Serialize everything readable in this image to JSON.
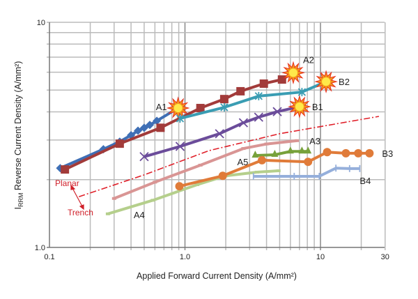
{
  "chart_data": {
    "type": "line",
    "xscale": "log",
    "yscale": "log",
    "xlim": [
      0.1,
      30
    ],
    "ylim": [
      1.0,
      10
    ],
    "xlabel": "Applied Forward Current Density (A/mm²)",
    "ylabel_main": "I",
    "ylabel_sub": "RRM",
    "ylabel_rest": " Reverse Current Density (A/mm²)",
    "xticks": [
      {
        "v": 0.1,
        "label": "0.1"
      },
      {
        "v": 1,
        "label": "1.0"
      },
      {
        "v": 10,
        "label": "10"
      },
      {
        "v": 30,
        "label": "30"
      }
    ],
    "yticks": [
      {
        "v": 1,
        "label": "1.0"
      },
      {
        "v": 10,
        "label": "10"
      }
    ],
    "grid": true,
    "series": [
      {
        "name": "A1",
        "color": "#3f6fb5",
        "marker": "diamond",
        "x": [
          0.12,
          0.25,
          0.33,
          0.4,
          0.45,
          0.5,
          0.55,
          0.62,
          0.89
        ],
        "y": [
          2.25,
          2.73,
          2.95,
          3.15,
          3.3,
          3.4,
          3.5,
          3.65,
          4.16
        ],
        "end": "star",
        "label_pos": "left"
      },
      {
        "name": "A2",
        "color": "#a23b3a",
        "marker": "square",
        "x": [
          0.13,
          0.33,
          0.66,
          1.3,
          1.95,
          2.57,
          3.82,
          5.2,
          6.3
        ],
        "y": [
          2.22,
          2.89,
          3.4,
          4.16,
          4.56,
          4.94,
          5.34,
          5.57,
          5.97
        ],
        "end": "star",
        "label_pos": "upright"
      },
      {
        "name": "B2",
        "color": "#3a9db3",
        "marker": "asterisk",
        "x": [
          0.92,
          1.95,
          3.5,
          7.3,
          11.0
        ],
        "y": [
          3.74,
          4.19,
          4.7,
          4.9,
          5.45
        ],
        "end": "star",
        "label_pos": "right"
      },
      {
        "name": "B1",
        "color": "#6b4c9a",
        "marker": "x",
        "x": [
          0.5,
          0.92,
          1.8,
          2.7,
          3.5,
          4.8,
          7.0
        ],
        "y": [
          2.53,
          2.81,
          3.2,
          3.58,
          3.79,
          4.01,
          4.22
        ],
        "end": "star",
        "label_pos": "right"
      },
      {
        "name": "A3",
        "color": "#d99594",
        "marker": "dash",
        "x": [
          0.3,
          0.6,
          1.3,
          2.7,
          4.0,
          6.7
        ],
        "y": [
          1.65,
          1.95,
          2.32,
          2.75,
          2.88,
          2.98
        ],
        "label_pos": "right"
      },
      {
        "name": "A4",
        "color": "#b5cf8c",
        "marker": "dash",
        "x": [
          0.27,
          0.58,
          1.23,
          2.0,
          3.4,
          4.9
        ],
        "y": [
          1.41,
          1.62,
          1.9,
          2.08,
          2.16,
          2.19
        ],
        "label_pos": "below-start"
      },
      {
        "name": "A5",
        "color": "#77a13b",
        "marker": "triangle",
        "x": [
          3.3,
          4.6,
          6.0,
          7.3,
          8.1
        ],
        "y": [
          2.56,
          2.58,
          2.67,
          2.67,
          2.67
        ],
        "label_pos": "left"
      },
      {
        "name": "B3",
        "color": "#e07b39",
        "marker": "circle",
        "x": [
          0.91,
          1.9,
          3.7,
          8.1,
          11.2,
          15.4,
          19,
          23
        ],
        "y": [
          1.87,
          2.08,
          2.44,
          2.4,
          2.65,
          2.62,
          2.62,
          2.62
        ],
        "label_pos": "right"
      },
      {
        "name": "B4",
        "color": "#95afdb",
        "marker": "plus",
        "x": [
          3.2,
          6.4,
          9.8,
          13,
          16.4,
          19.5
        ],
        "y": [
          2.07,
          2.07,
          2.07,
          2.25,
          2.24,
          2.24
        ],
        "label_pos": "below"
      }
    ],
    "boundary": {
      "color": "#e0202a",
      "x": [
        0.165,
        0.5,
        1.5,
        5,
        27
      ],
      "y": [
        1.68,
        2.1,
        2.69,
        3.2,
        3.82
      ]
    },
    "annotations": {
      "planar": "Planar",
      "trench": "Trench"
    }
  }
}
